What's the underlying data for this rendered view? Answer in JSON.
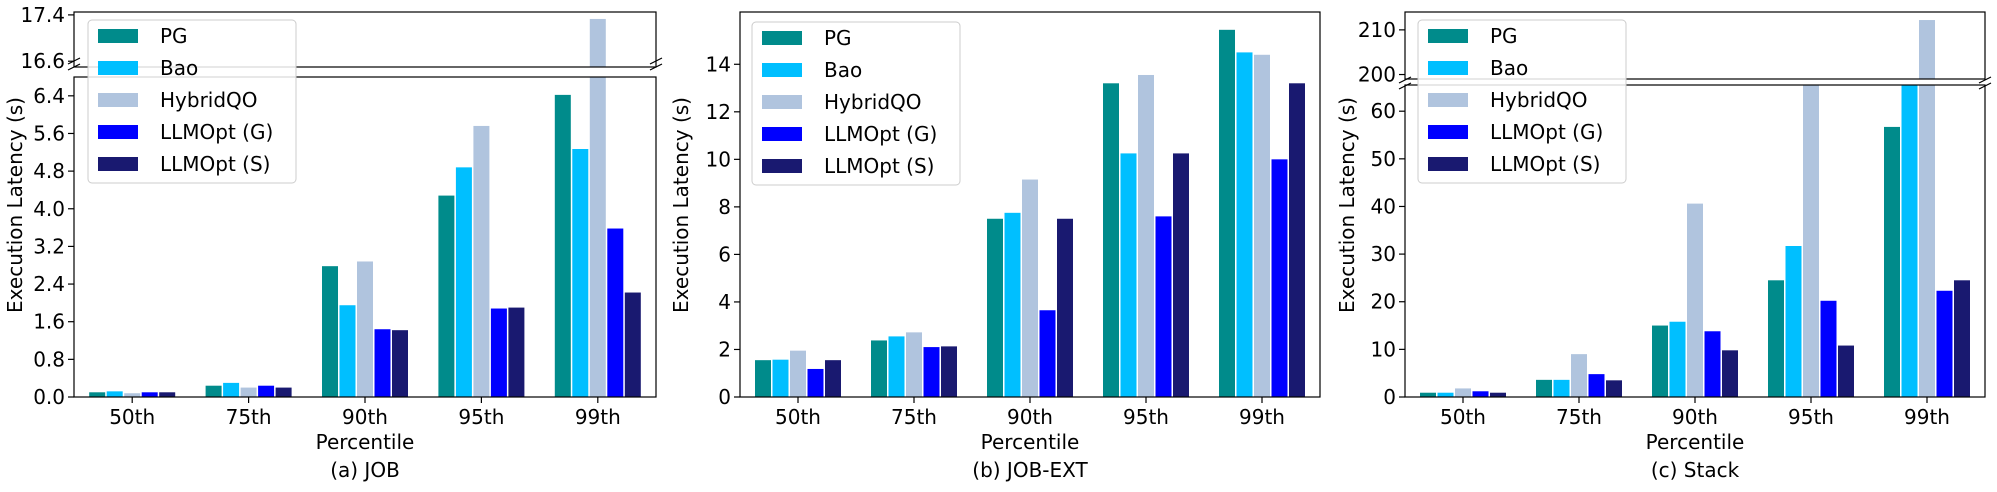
{
  "series_names": [
    "PG",
    "Bao",
    "HybridQO",
    "LLMOpt (G)",
    "LLMOpt (S)"
  ],
  "colors": [
    "#008B8B",
    "#00BFFF",
    "#B0C4DE",
    "#0000FF",
    "#191970"
  ],
  "chart_data": [
    {
      "type": "bar",
      "panel": "a",
      "title": "(a) JOB",
      "xlabel": "Percentile",
      "ylabel": "Execution Latency (s)",
      "categories": [
        "50th",
        "75th",
        "90th",
        "95th",
        "99th"
      ],
      "broken_axis": true,
      "ylim_lower": [
        0,
        6.8
      ],
      "ylim_upper": [
        16.5,
        17.45
      ],
      "yticks_lower": [
        "0.0",
        "0.8",
        "1.6",
        "2.4",
        "3.2",
        "4.0",
        "4.8",
        "5.6",
        "6.4"
      ],
      "yticks_upper": [
        "16.6",
        "17.4"
      ],
      "series": [
        {
          "name": "PG",
          "values": [
            0.1,
            0.24,
            2.78,
            4.28,
            6.42
          ]
        },
        {
          "name": "Bao",
          "values": [
            0.12,
            0.3,
            1.95,
            4.88,
            5.27
          ]
        },
        {
          "name": "HybridQO",
          "values": [
            0.08,
            0.2,
            2.88,
            5.76,
            17.33
          ]
        },
        {
          "name": "LLMOpt (G)",
          "values": [
            0.1,
            0.24,
            1.44,
            1.88,
            3.58
          ]
        },
        {
          "name": "LLMOpt (S)",
          "values": [
            0.1,
            0.2,
            1.42,
            1.9,
            2.22
          ]
        }
      ],
      "legend": "top-left"
    },
    {
      "type": "bar",
      "panel": "b",
      "title": "(b) JOB-EXT",
      "xlabel": "Percentile",
      "ylabel": "Execution Latency (s)",
      "categories": [
        "50th",
        "75th",
        "90th",
        "95th",
        "99th"
      ],
      "broken_axis": false,
      "ylim": [
        0,
        16.2
      ],
      "yticks": [
        "0",
        "2",
        "4",
        "6",
        "8",
        "10",
        "12",
        "14"
      ],
      "series": [
        {
          "name": "PG",
          "values": [
            1.55,
            2.38,
            7.5,
            13.2,
            15.45
          ]
        },
        {
          "name": "Bao",
          "values": [
            1.57,
            2.55,
            7.75,
            10.25,
            14.5
          ]
        },
        {
          "name": "HybridQO",
          "values": [
            1.95,
            2.72,
            9.15,
            13.55,
            14.4
          ]
        },
        {
          "name": "LLMOpt (G)",
          "values": [
            1.18,
            2.1,
            3.65,
            7.6,
            10.0
          ]
        },
        {
          "name": "LLMOpt (S)",
          "values": [
            1.55,
            2.13,
            7.5,
            10.25,
            13.2
          ]
        }
      ],
      "legend": "top-left"
    },
    {
      "type": "bar",
      "panel": "c",
      "title": "(c) Stack",
      "xlabel": "Percentile",
      "ylabel": "Execution Latency (s)",
      "categories": [
        "50th",
        "75th",
        "90th",
        "95th",
        "99th"
      ],
      "broken_axis": true,
      "ylim_lower": [
        0,
        65.5
      ],
      "ylim_upper": [
        199,
        214
      ],
      "yticks_lower": [
        "0",
        "10",
        "20",
        "30",
        "40",
        "50",
        "60"
      ],
      "yticks_upper": [
        "200",
        "210"
      ],
      "series": [
        {
          "name": "PG",
          "values": [
            0.9,
            3.6,
            15.0,
            24.5,
            56.7
          ]
        },
        {
          "name": "Bao",
          "values": [
            0.9,
            3.6,
            15.8,
            31.7,
            65.5
          ]
        },
        {
          "name": "HybridQO",
          "values": [
            1.8,
            9.0,
            40.6,
            65.5,
            212.2
          ]
        },
        {
          "name": "LLMOpt (G)",
          "values": [
            1.2,
            4.8,
            13.8,
            20.2,
            22.3
          ]
        },
        {
          "name": "LLMOpt (S)",
          "values": [
            0.9,
            3.5,
            9.8,
            10.8,
            24.5
          ]
        }
      ],
      "legend": "top-left"
    }
  ]
}
